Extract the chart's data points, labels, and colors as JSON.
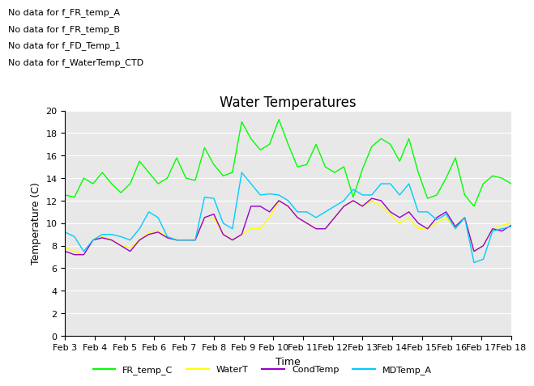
{
  "title": "Water Temperatures",
  "xlabel": "Time",
  "ylabel": "Temperature (C)",
  "ylim": [
    0,
    20
  ],
  "yticks": [
    0,
    2,
    4,
    6,
    8,
    10,
    12,
    14,
    16,
    18,
    20
  ],
  "xtick_labels": [
    "Feb 3",
    "Feb 4",
    "Feb 5",
    "Feb 6",
    "Feb 7",
    "Feb 8",
    "Feb 9",
    "Feb 10",
    "Feb 11",
    "Feb 12",
    "Feb 13",
    "Feb 14",
    "Feb 15",
    "Feb 16",
    "Feb 17",
    "Feb 18"
  ],
  "no_data_lines": [
    "No data for f_FR_temp_A",
    "No data for f_FR_temp_B",
    "No data for f_FD_Temp_1",
    "No data for f_WaterTemp_CTD"
  ],
  "colors": {
    "FR_temp_C": "#00FF00",
    "WaterT": "#FFFF00",
    "CondTemp": "#9900CC",
    "MDTemp_A": "#00CCFF"
  },
  "background_color": "#E8E8E8",
  "grid_color": "#FFFFFF",
  "title_fontsize": 12,
  "axis_fontsize": 9,
  "tick_fontsize": 8,
  "FR_temp_C": [
    12.5,
    12.3,
    14.0,
    13.5,
    14.5,
    13.5,
    12.7,
    13.5,
    15.5,
    14.5,
    13.5,
    14.0,
    15.8,
    14.0,
    13.8,
    16.7,
    15.2,
    14.2,
    14.5,
    19.0,
    17.5,
    16.5,
    17.0,
    19.2,
    17.0,
    15.0,
    15.2,
    17.0,
    15.0,
    14.5,
    15.0,
    12.3,
    14.8,
    16.8,
    17.5,
    17.0,
    15.5,
    17.5,
    14.5,
    12.2,
    12.5,
    14.0,
    15.8,
    12.5,
    11.5,
    13.5,
    14.2,
    14.0,
    13.5
  ],
  "WaterT": [
    7.8,
    7.5,
    7.2,
    8.5,
    8.8,
    8.5,
    8.0,
    7.8,
    8.5,
    9.2,
    9.3,
    8.8,
    8.5,
    8.5,
    8.5,
    10.5,
    10.5,
    9.0,
    8.5,
    9.0,
    9.5,
    9.5,
    10.5,
    12.0,
    11.5,
    10.5,
    10.0,
    9.5,
    9.5,
    10.5,
    11.5,
    12.0,
    11.5,
    12.0,
    11.5,
    10.8,
    10.0,
    10.5,
    9.5,
    9.5,
    10.0,
    10.5,
    9.5,
    10.5,
    7.5,
    8.0,
    9.5,
    9.8,
    10.0
  ],
  "CondTemp": [
    7.5,
    7.2,
    7.2,
    8.5,
    8.7,
    8.5,
    8.0,
    7.5,
    8.5,
    9.0,
    9.2,
    8.7,
    8.5,
    8.5,
    8.5,
    10.5,
    10.8,
    9.0,
    8.5,
    9.0,
    11.5,
    11.5,
    11.0,
    12.0,
    11.5,
    10.5,
    10.0,
    9.5,
    9.5,
    10.5,
    11.5,
    12.0,
    11.5,
    12.2,
    12.0,
    11.0,
    10.5,
    11.0,
    10.0,
    9.5,
    10.5,
    11.0,
    9.7,
    10.5,
    7.5,
    8.0,
    9.5,
    9.3,
    9.8
  ],
  "MDTemp_A": [
    9.2,
    8.8,
    7.5,
    8.5,
    9.0,
    9.0,
    8.8,
    8.5,
    9.5,
    11.0,
    10.5,
    8.8,
    8.5,
    8.5,
    8.5,
    12.3,
    12.2,
    10.0,
    9.5,
    14.5,
    13.5,
    12.5,
    12.6,
    12.5,
    12.0,
    11.0,
    11.0,
    10.5,
    11.0,
    11.5,
    12.0,
    13.0,
    12.5,
    12.5,
    13.5,
    13.5,
    12.5,
    13.5,
    11.0,
    11.0,
    10.3,
    10.8,
    9.5,
    10.5,
    6.5,
    6.8,
    9.3,
    9.5,
    9.7
  ]
}
